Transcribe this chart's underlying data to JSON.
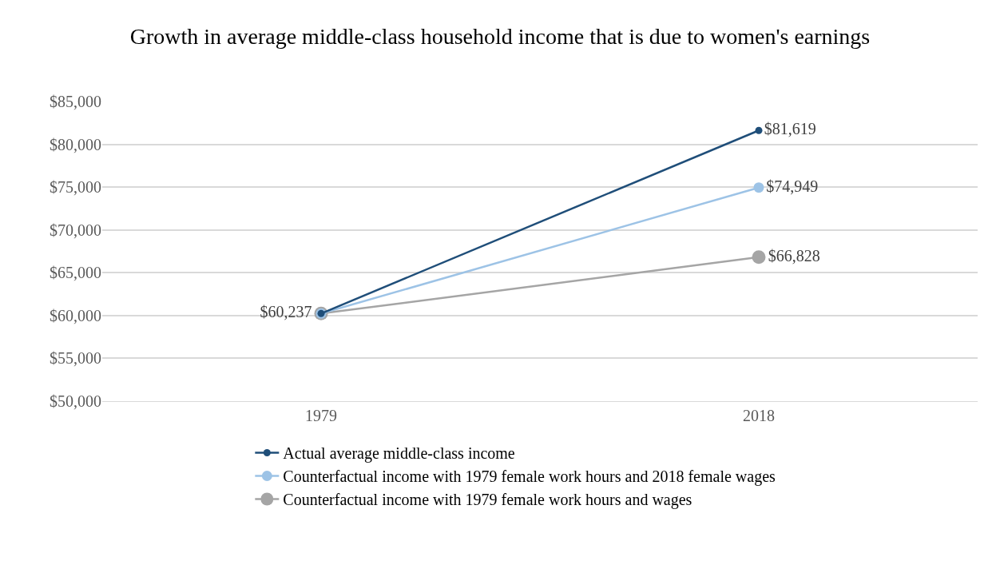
{
  "chart_data": {
    "type": "line",
    "title": "Growth in average middle-class household income that is due to women's earnings",
    "categories": [
      "1979",
      "2018"
    ],
    "series": [
      {
        "name": "Actual average middle-class income",
        "color": "#1f4e79",
        "values": [
          60237,
          81619
        ],
        "value_labels": [
          null,
          "$81,619"
        ]
      },
      {
        "name": "Counterfactual income with 1979 female work hours and 2018 female wages",
        "color": "#9dc3e6",
        "values": [
          60237,
          74949
        ],
        "value_labels": [
          null,
          "$74,949"
        ]
      },
      {
        "name": "Counterfactual income with 1979 female work hours and wages",
        "color": "#a5a5a5",
        "values": [
          60237,
          66828
        ],
        "value_labels": [
          "$60,237",
          "$66,828"
        ]
      }
    ],
    "ylim": [
      50000,
      85000
    ],
    "yticks": [
      {
        "value": 50000,
        "label": "$50,000"
      },
      {
        "value": 55000,
        "label": "$55,000"
      },
      {
        "value": 60000,
        "label": "$60,000"
      },
      {
        "value": 65000,
        "label": "$65,000"
      },
      {
        "value": 70000,
        "label": "$70,000"
      },
      {
        "value": 75000,
        "label": "$75,000"
      },
      {
        "value": 80000,
        "label": "$80,000"
      },
      {
        "value": 85000,
        "label": "$85,000"
      }
    ],
    "grid": "y",
    "legend": "bottom",
    "marker": "circle",
    "line_style": "solid"
  }
}
